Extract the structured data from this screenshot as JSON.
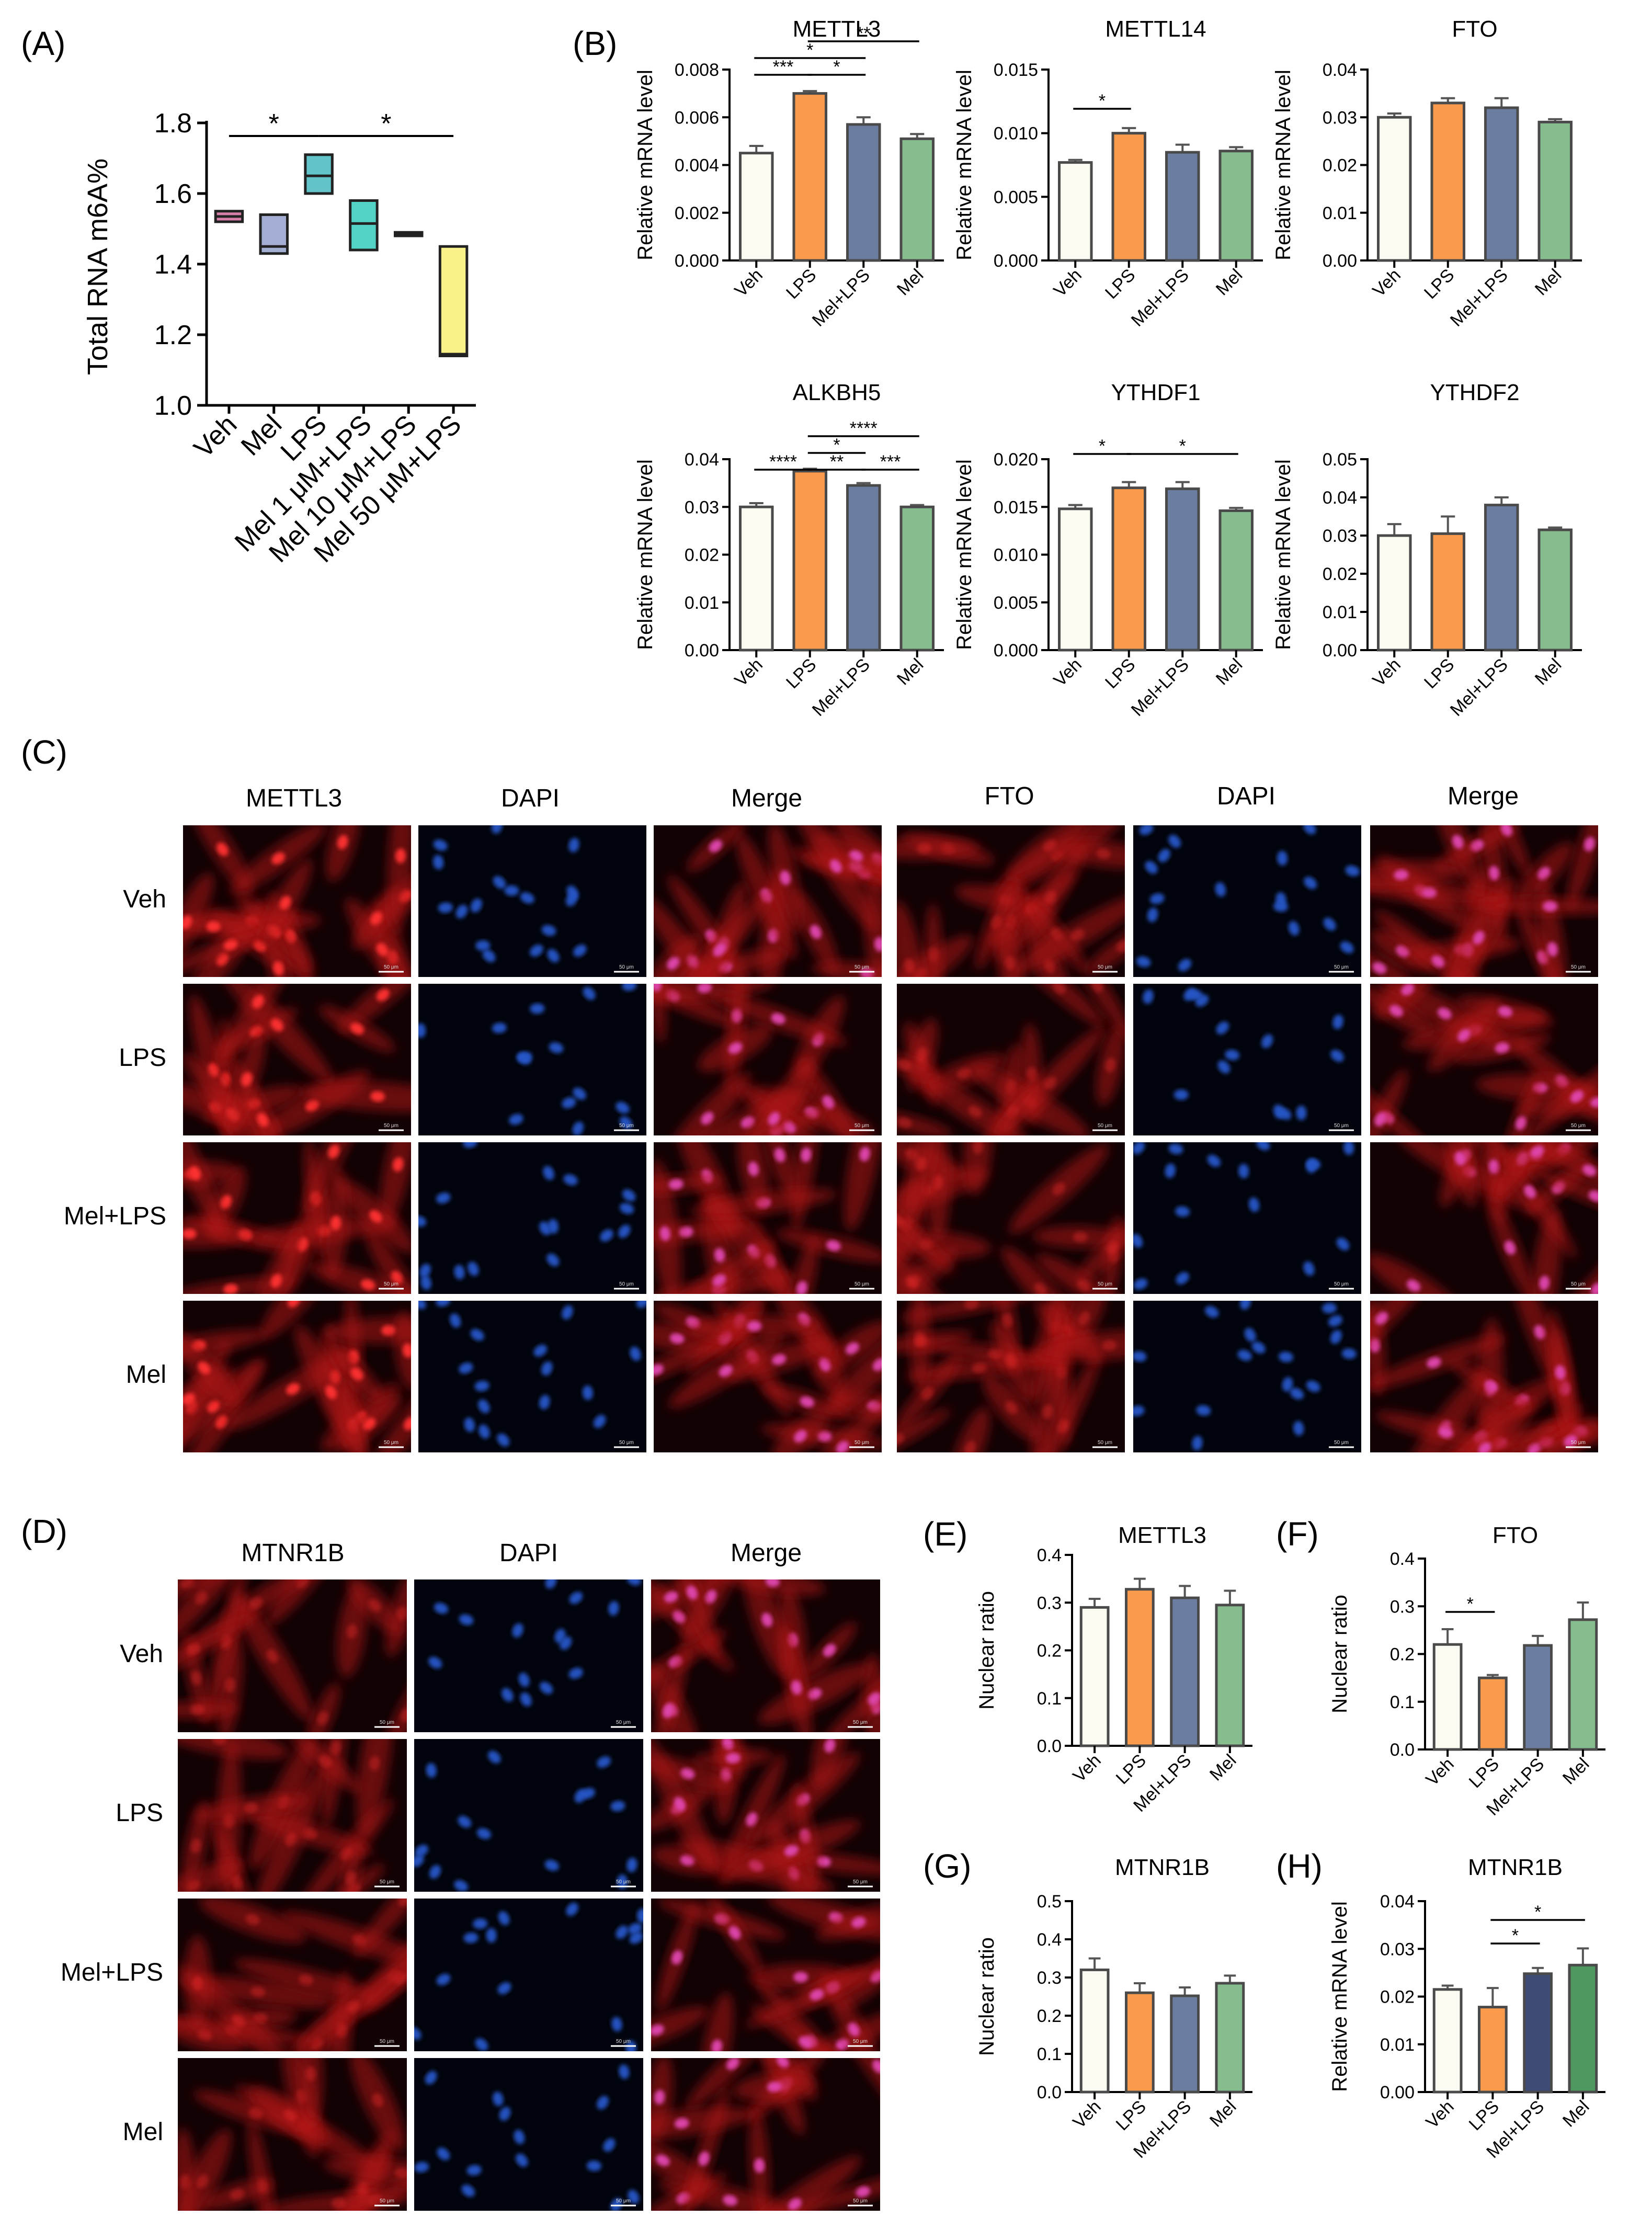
{
  "colors": {
    "veh": "#fbfbf1",
    "lps": "#f99a4c",
    "mel_lps": "#6b7da0",
    "mel": "#86bd8e",
    "mel_lps_h": "#3e4b74",
    "mel_h": "#4f9960",
    "box_veh": "#d67fa9",
    "box_mel": "#a4add2",
    "box_lps": "#62c3c9",
    "box_mel1": "#53d3c6",
    "box_mel10": "#c7ccd2",
    "box_mel50": "#fbf18b",
    "red_stain": "#e02020",
    "blue_stain": "#2656c8",
    "merge_stain": "#e046b0"
  },
  "panel_labels": {
    "A": "(A)",
    "B": "(B)",
    "C": "(C)",
    "D": "(D)",
    "E": "(E)",
    "F": "(F)",
    "G": "(G)",
    "H": "(H)"
  },
  "panel_a": {
    "ylabel": "Total RNA m6A%",
    "ylim": [
      1.0,
      1.8
    ],
    "yticks": [
      "1.0",
      "1.2",
      "1.4",
      "1.6",
      "1.8"
    ],
    "categories": [
      "Veh",
      "Mel",
      "LPS",
      "Mel 1 μM+LPS",
      "Mel 10 μM+LPS",
      "Mel 50 μM+LPS"
    ],
    "boxes": [
      {
        "low": 1.52,
        "mid": 1.535,
        "high": 1.55
      },
      {
        "low": 1.43,
        "mid": 1.45,
        "high": 1.54
      },
      {
        "low": 1.6,
        "mid": 1.65,
        "high": 1.71
      },
      {
        "low": 1.44,
        "mid": 1.515,
        "high": 1.58
      },
      {
        "low": 1.48,
        "mid": 1.485,
        "high": 1.49
      },
      {
        "low": 1.14,
        "mid": 1.145,
        "high": 1.45
      }
    ],
    "significance": [
      {
        "from": 0,
        "to": 2,
        "label": "*"
      },
      {
        "from": 2,
        "to": 5,
        "label": "*"
      }
    ]
  },
  "bar_categories": [
    "Veh",
    "LPS",
    "Mel+LPS",
    "Mel"
  ],
  "panel_b": {
    "ylabel": "Relative mRNA level",
    "charts": [
      {
        "title": "METTL3",
        "ylim": [
          0,
          0.008
        ],
        "yticks": [
          "0.000",
          "0.002",
          "0.004",
          "0.006",
          "0.008"
        ],
        "values": [
          0.0045,
          0.007,
          0.0057,
          0.0051
        ],
        "errors": [
          0.0003,
          0.0001,
          0.0003,
          0.0002
        ],
        "significance": [
          {
            "from": 0,
            "to": 1,
            "label": "***",
            "level": 0
          },
          {
            "from": 1,
            "to": 2,
            "label": "*",
            "level": 0
          },
          {
            "from": 0,
            "to": 2,
            "label": "*",
            "level": 1
          },
          {
            "from": 1,
            "to": 3,
            "label": "**",
            "level": 2
          }
        ]
      },
      {
        "title": "METTL14",
        "ylim": [
          0,
          0.015
        ],
        "yticks": [
          "0.000",
          "0.005",
          "0.010",
          "0.015"
        ],
        "values": [
          0.0077,
          0.01,
          0.0085,
          0.0086
        ],
        "errors": [
          0.0002,
          0.0004,
          0.0006,
          0.0003
        ],
        "significance": [
          {
            "from": 0,
            "to": 1,
            "label": "*",
            "level": 0
          }
        ]
      },
      {
        "title": "FTO",
        "ylim": [
          0,
          0.04
        ],
        "yticks": [
          "0.00",
          "0.01",
          "0.02",
          "0.03",
          "0.04"
        ],
        "values": [
          0.03,
          0.033,
          0.032,
          0.029
        ],
        "errors": [
          0.0008,
          0.001,
          0.002,
          0.0006
        ],
        "significance": []
      },
      {
        "title": "ALKBH5",
        "ylim": [
          0,
          0.04
        ],
        "yticks": [
          "0.00",
          "0.01",
          "0.02",
          "0.03",
          "0.04"
        ],
        "values": [
          0.03,
          0.0375,
          0.0345,
          0.03
        ],
        "errors": [
          0.0008,
          0.0005,
          0.0005,
          0.0004
        ],
        "significance": [
          {
            "from": 0,
            "to": 1,
            "label": "****",
            "level": 0
          },
          {
            "from": 1,
            "to": 2,
            "label": "**",
            "level": 0
          },
          {
            "from": 2,
            "to": 3,
            "label": "***",
            "level": 0
          },
          {
            "from": 1,
            "to": 2,
            "label": "*",
            "level": 1
          },
          {
            "from": 1,
            "to": 3,
            "label": "****",
            "level": 2
          }
        ]
      },
      {
        "title": "YTHDF1",
        "ylim": [
          0,
          0.02
        ],
        "yticks": [
          "0.000",
          "0.005",
          "0.010",
          "0.015",
          "0.020"
        ],
        "values": [
          0.0148,
          0.017,
          0.0169,
          0.0146
        ],
        "errors": [
          0.0004,
          0.0006,
          0.0007,
          0.0003
        ],
        "significance": [
          {
            "from": 0,
            "to": 1,
            "label": "*",
            "level": 0
          },
          {
            "from": 1,
            "to": 3,
            "label": "*",
            "level": 0
          }
        ]
      },
      {
        "title": "YTHDF2",
        "ylim": [
          0,
          0.05
        ],
        "yticks": [
          "0.00",
          "0.01",
          "0.02",
          "0.03",
          "0.04",
          "0.05"
        ],
        "values": [
          0.03,
          0.0305,
          0.038,
          0.0315
        ],
        "errors": [
          0.003,
          0.0045,
          0.002,
          0.0006
        ],
        "significance": []
      }
    ]
  },
  "panel_c": {
    "columns": [
      "METTL3",
      "DAPI",
      "Merge",
      "FTO",
      "DAPI",
      "Merge"
    ],
    "rows": [
      "Veh",
      "LPS",
      "Mel+LPS",
      "Mel"
    ],
    "scale_bar": "50 μm"
  },
  "panel_d": {
    "columns": [
      "MTNR1B",
      "DAPI",
      "Merge"
    ],
    "rows": [
      "Veh",
      "LPS",
      "Mel+LPS",
      "Mel"
    ],
    "scale_bar": "50 μm"
  },
  "panel_e": {
    "title": "METTL3",
    "ylabel": "Nuclear ratio",
    "ylim": [
      0,
      0.4
    ],
    "yticks": [
      "0.0",
      "0.1",
      "0.2",
      "0.3",
      "0.4"
    ],
    "values": [
      0.29,
      0.328,
      0.31,
      0.295
    ],
    "errors": [
      0.018,
      0.022,
      0.025,
      0.03
    ],
    "significance": []
  },
  "panel_f": {
    "title": "FTO",
    "ylabel": "Nuclear ratio",
    "ylim": [
      0,
      0.4
    ],
    "yticks": [
      "0.0",
      "0.1",
      "0.2",
      "0.3",
      "0.4"
    ],
    "values": [
      0.22,
      0.15,
      0.218,
      0.272
    ],
    "errors": [
      0.032,
      0.006,
      0.02,
      0.036
    ],
    "significance": [
      {
        "from": 0,
        "to": 1,
        "label": "*",
        "level": 0
      }
    ]
  },
  "panel_g": {
    "title": "MTNR1B",
    "ylabel": "Nuclear ratio",
    "ylim": [
      0,
      0.5
    ],
    "yticks": [
      "0.0",
      "0.1",
      "0.2",
      "0.3",
      "0.4",
      "0.5"
    ],
    "values": [
      0.32,
      0.26,
      0.252,
      0.285
    ],
    "errors": [
      0.03,
      0.025,
      0.022,
      0.02
    ],
    "significance": []
  },
  "panel_h": {
    "title": "MTNR1B",
    "ylabel": "Relative mRNA level",
    "ylim": [
      0,
      0.04
    ],
    "yticks": [
      "0.00",
      "0.01",
      "0.02",
      "0.03",
      "0.04"
    ],
    "values": [
      0.0215,
      0.0178,
      0.0248,
      0.0266
    ],
    "errors": [
      0.0008,
      0.004,
      0.0012,
      0.0035
    ],
    "significance": [
      {
        "from": 1,
        "to": 2,
        "label": "*",
        "level": 0
      },
      {
        "from": 1,
        "to": 3,
        "label": "*",
        "level": 1
      }
    ]
  }
}
